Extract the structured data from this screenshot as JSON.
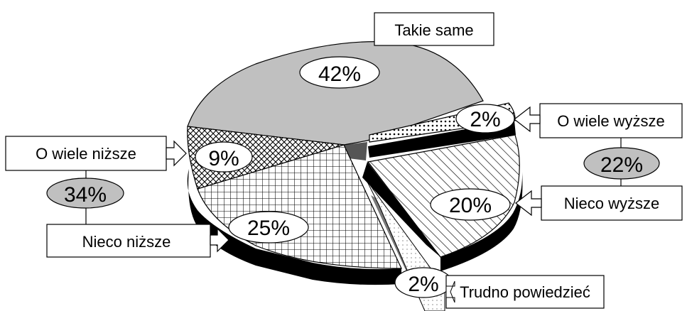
{
  "chart_data": {
    "type": "pie",
    "style": "3d-exploded",
    "slices": [
      {
        "label": "Takie same",
        "value": 42,
        "value_label": "42%",
        "fill": "#c0c0c0",
        "pattern": "solid"
      },
      {
        "label": "O wiele wyższe",
        "value": 2,
        "value_label": "2%",
        "fill": "#ffffff",
        "pattern": "dots"
      },
      {
        "label": "Nieco wyższe",
        "value": 20,
        "value_label": "20%",
        "fill": "#ffffff",
        "pattern": "diagonal-hatch"
      },
      {
        "label": "Trudno powiedzieć",
        "value": 2,
        "value_label": "2%",
        "fill": "#ffffff",
        "pattern": "light-dots"
      },
      {
        "label": "Nieco niższe",
        "value": 25,
        "value_label": "25%",
        "fill": "#ffffff",
        "pattern": "grid"
      },
      {
        "label": "O wiele niższe",
        "value": 9,
        "value_label": "9%",
        "fill": "#ffffff",
        "pattern": "crosshatch"
      }
    ],
    "group_totals": [
      {
        "value_label": "34%",
        "members": [
          "O wiele niższe",
          "Nieco niższe"
        ]
      },
      {
        "value_label": "22%",
        "members": [
          "O wiele wyższe",
          "Nieco wyższe"
        ]
      }
    ],
    "title": "",
    "legend": "none"
  }
}
